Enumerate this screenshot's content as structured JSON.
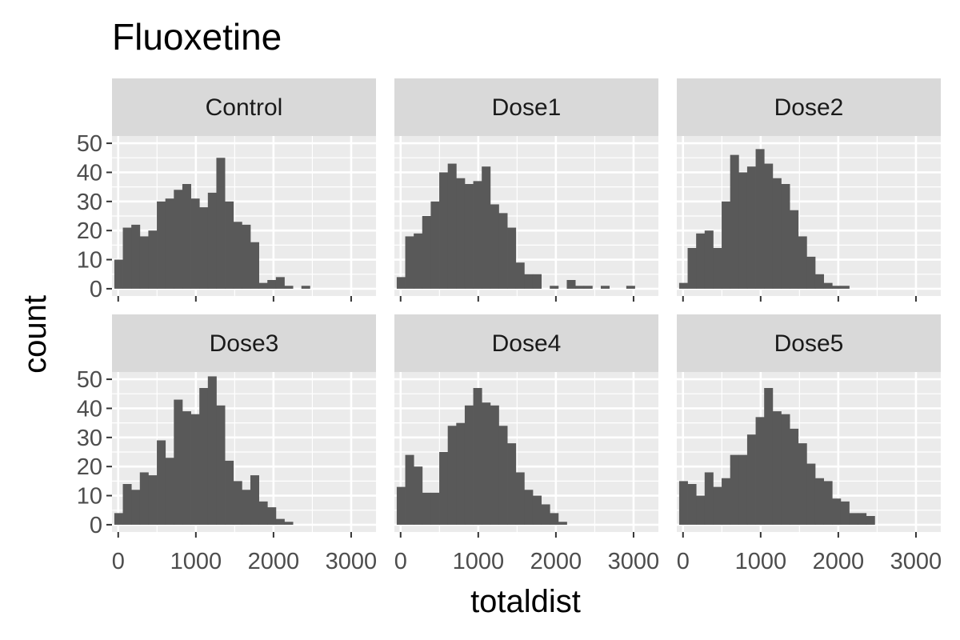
{
  "chart_data": {
    "type": "bar",
    "subtype": "faceted-histogram",
    "title": "Fluoxetine",
    "xlabel": "totaldist",
    "ylabel": "count",
    "xlim": [
      -80,
      3320
    ],
    "ylim": [
      -2.5,
      52.5
    ],
    "x_ticks": [
      0,
      1000,
      2000,
      3000
    ],
    "y_ticks": [
      0,
      10,
      20,
      30,
      40,
      50
    ],
    "bin_start": -50,
    "bin_width": 109.5,
    "grid": true,
    "colors": {
      "bar": "#595959",
      "panel_bg": "#ebebeb",
      "strip_bg": "#d9d9d9",
      "grid": "#ffffff"
    },
    "facets": [
      {
        "name": "Control",
        "counts": [
          10,
          21,
          22,
          18,
          20,
          30,
          31,
          34,
          36,
          31,
          28,
          33,
          45,
          30,
          23,
          22,
          16,
          2,
          3,
          4,
          1,
          0,
          1,
          0,
          0,
          0,
          0,
          0,
          0,
          0,
          0
        ]
      },
      {
        "name": "Dose1",
        "counts": [
          4,
          18,
          19,
          25,
          30,
          40,
          43,
          38,
          36,
          37,
          42,
          29,
          26,
          21,
          9,
          5,
          5,
          0,
          1,
          0,
          3,
          1,
          1,
          0,
          1,
          0,
          0,
          1,
          0,
          0,
          0
        ]
      },
      {
        "name": "Dose2",
        "counts": [
          2,
          14,
          19,
          20,
          14,
          30,
          46,
          40,
          42,
          48,
          43,
          38,
          36,
          27,
          18,
          11,
          5,
          2,
          1,
          1,
          0,
          0,
          0,
          0,
          0,
          0,
          0,
          0,
          0,
          0,
          0
        ]
      },
      {
        "name": "Dose3",
        "counts": [
          4,
          14,
          12,
          18,
          17,
          29,
          23,
          43,
          39,
          38,
          47,
          51,
          41,
          22,
          15,
          12,
          17,
          8,
          6,
          2,
          1,
          0,
          0,
          0,
          0,
          0,
          0,
          0,
          0,
          0,
          0
        ]
      },
      {
        "name": "Dose4",
        "counts": [
          13,
          24,
          20,
          11,
          11,
          25,
          34,
          35,
          41,
          47,
          42,
          41,
          34,
          28,
          18,
          12,
          10,
          7,
          4,
          1,
          0,
          0,
          0,
          0,
          0,
          0,
          0,
          0,
          0,
          0,
          0
        ]
      },
      {
        "name": "Dose5",
        "counts": [
          15,
          14,
          10,
          18,
          13,
          16,
          24,
          24,
          31,
          37,
          47,
          39,
          38,
          33,
          28,
          21,
          16,
          15,
          9,
          8,
          4,
          4,
          3,
          0,
          0,
          0,
          0,
          0,
          0,
          0,
          0
        ]
      }
    ]
  }
}
